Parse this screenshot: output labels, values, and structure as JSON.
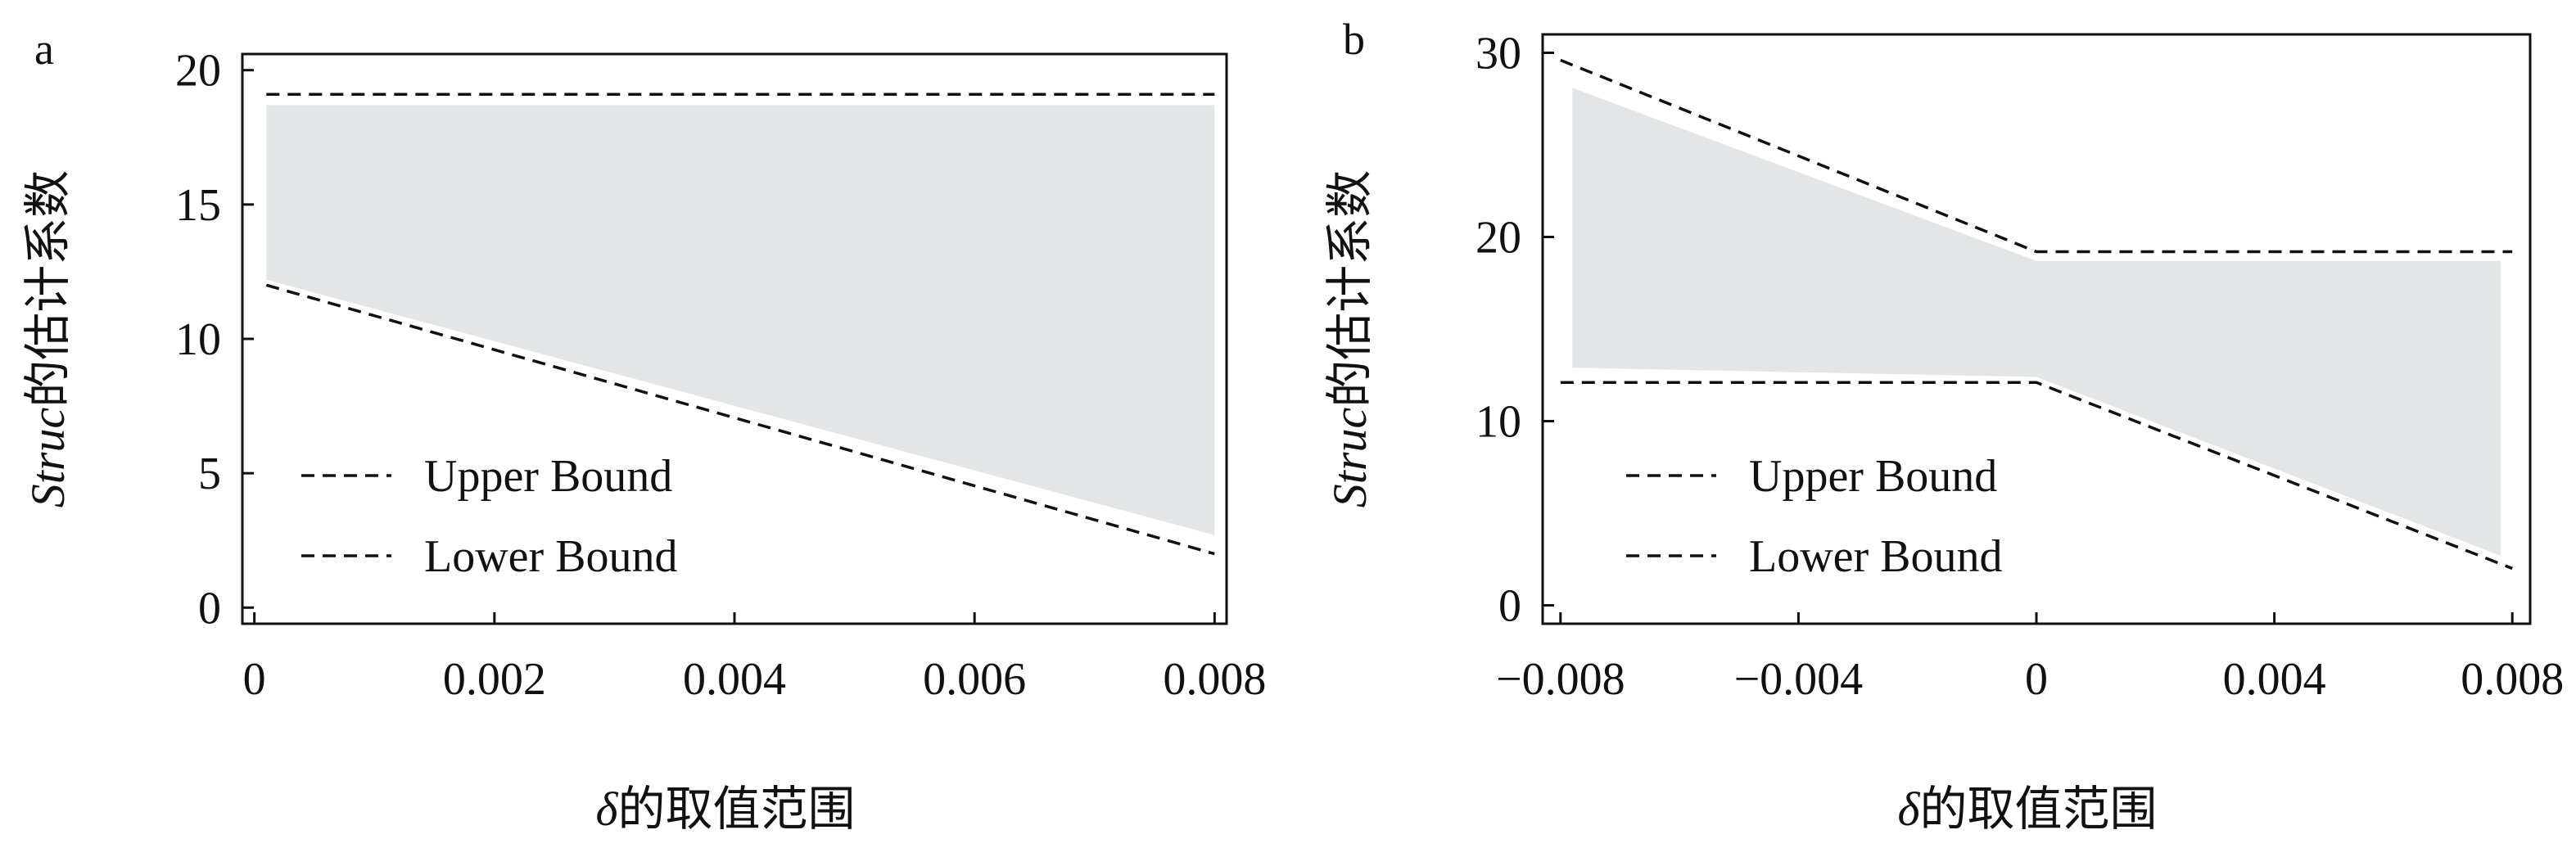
{
  "chart_data": [
    {
      "type": "area",
      "panel_label": "a",
      "xlabel": "δ的取值范围",
      "ylabel": "Struc的估计系数",
      "xlim": [
        -0.0001,
        0.0081
      ],
      "ylim": [
        -0.6,
        20.6
      ],
      "xticks": [
        0,
        0.002,
        0.004,
        0.006,
        0.008
      ],
      "xtick_labels": [
        "0",
        "0.002",
        "0.004",
        "0.006",
        "0.008"
      ],
      "yticks": [
        0,
        5,
        10,
        15,
        20
      ],
      "ytick_labels": [
        "0",
        "5",
        "10",
        "15",
        "20"
      ],
      "legend": [
        "Upper Bound",
        "Lower Bound"
      ],
      "legend_position": "lower-left",
      "series": [
        {
          "name": "Upper Bound",
          "style": "dashed",
          "x": [
            0.0001,
            0.008
          ],
          "y": [
            19.1,
            19.1
          ]
        },
        {
          "name": "Lower Bound",
          "style": "dashed",
          "x": [
            0.0001,
            0.008
          ],
          "y": [
            12.0,
            2.0
          ]
        }
      ],
      "shaded_band": {
        "x": [
          0.0001,
          0.008
        ],
        "upper": [
          18.7,
          18.7
        ],
        "lower": [
          12.2,
          2.7
        ],
        "color": "#e3e6e6"
      }
    },
    {
      "type": "area",
      "panel_label": "b",
      "xlabel": "δ的取值范围",
      "ylabel": "Struc的估计系数",
      "xlim": [
        -0.0083,
        0.0083
      ],
      "ylim": [
        -1.0,
        31.0
      ],
      "xticks": [
        -0.008,
        -0.004,
        0,
        0.004,
        0.008
      ],
      "xtick_labels": [
        "−0.008",
        "−0.004",
        "0",
        "0.004",
        "0.008"
      ],
      "yticks": [
        0,
        10,
        20,
        30
      ],
      "ytick_labels": [
        "0",
        "10",
        "20",
        "30"
      ],
      "legend": [
        "Upper Bound",
        "Lower Bound"
      ],
      "legend_position": "lower-left",
      "series": [
        {
          "name": "Upper Bound",
          "style": "dashed",
          "x": [
            -0.008,
            0,
            0.008
          ],
          "y": [
            29.6,
            19.2,
            19.2
          ]
        },
        {
          "name": "Lower Bound",
          "style": "dashed",
          "x": [
            -0.008,
            0,
            0.008
          ],
          "y": [
            12.1,
            12.1,
            2.0
          ]
        }
      ],
      "shaded_band": {
        "x": [
          -0.0078,
          0,
          0.0078
        ],
        "upper": [
          28.1,
          18.7,
          18.7
        ],
        "lower": [
          12.9,
          12.4,
          2.7
        ],
        "color": "#e3e6e6"
      }
    }
  ]
}
